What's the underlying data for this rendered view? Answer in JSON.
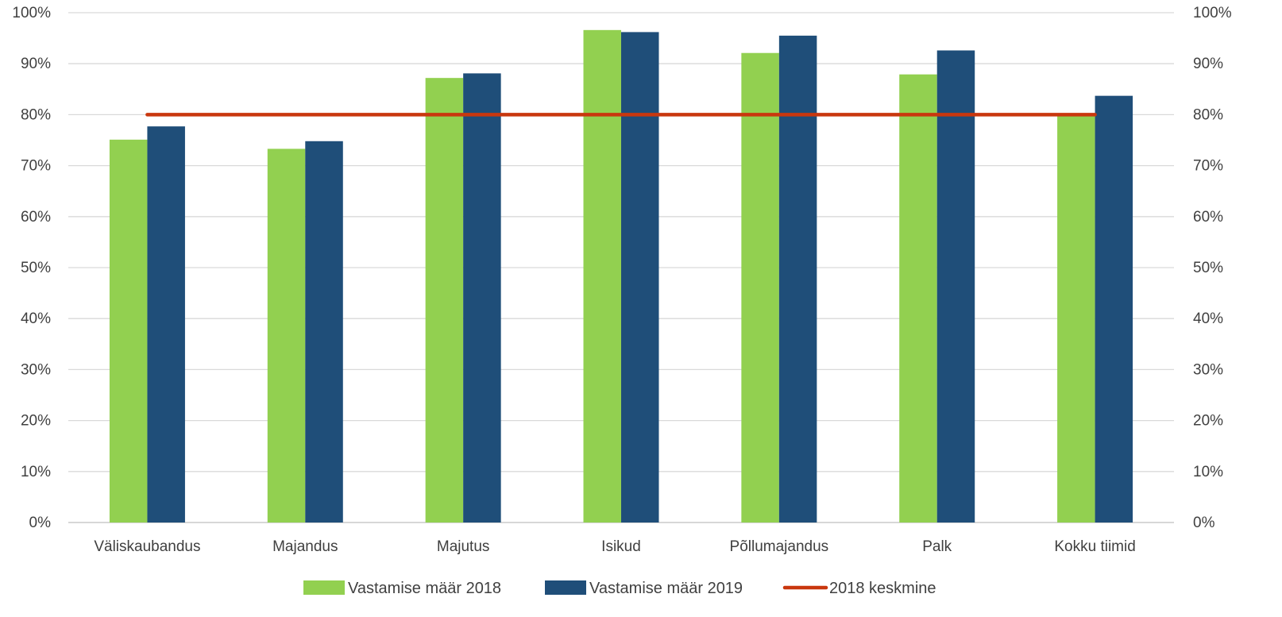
{
  "chart_data": {
    "type": "bar",
    "categories": [
      "Väliskaubandus",
      "Majandus",
      "Majutus",
      "Isikud",
      "Põllumajandus",
      "Palk",
      "Kokku tiimid"
    ],
    "series": [
      {
        "name": "Vastamise määr 2018",
        "type": "bar",
        "color": "#92D050",
        "values": [
          75.1,
          73.3,
          87.2,
          96.6,
          92.1,
          87.9,
          80.0
        ]
      },
      {
        "name": "Vastamise määr 2019",
        "type": "bar",
        "color": "#1F4E79",
        "values": [
          77.7,
          74.8,
          88.1,
          96.2,
          95.5,
          92.6,
          83.7
        ]
      },
      {
        "name": "2018 keskmine",
        "type": "line",
        "color": "#C9370E",
        "value": 80
      }
    ],
    "ylim": [
      0,
      100
    ],
    "yticks": [
      "0%",
      "10%",
      "20%",
      "30%",
      "40%",
      "50%",
      "60%",
      "70%",
      "80%",
      "90%",
      "100%"
    ],
    "y2ticks": [
      "0%",
      "10%",
      "20%",
      "30%",
      "40%",
      "50%",
      "60%",
      "70%",
      "80%",
      "90%",
      "100%"
    ],
    "grid": true,
    "legend_position": "bottom"
  }
}
